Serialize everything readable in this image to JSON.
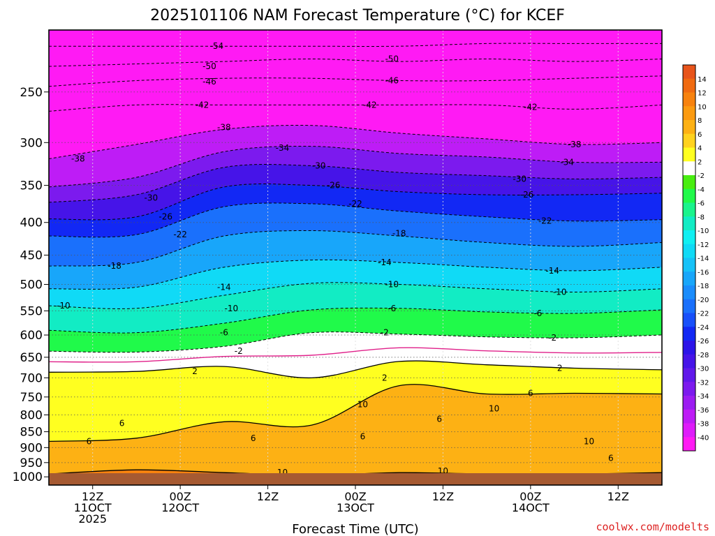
{
  "chart_data": {
    "type": "heatmap",
    "title": "2025101106 NAM Forecast Temperature (°C) for KCEF",
    "xlabel": "Forecast Time (UTC)",
    "ylabel": "",
    "x_ticks": [
      {
        "hour": 6,
        "lines": [
          "12Z",
          "11OCT",
          "2025"
        ]
      },
      {
        "hour": 18,
        "lines": [
          "00Z",
          "12OCT"
        ]
      },
      {
        "hour": 30,
        "lines": [
          "12Z"
        ]
      },
      {
        "hour": 42,
        "lines": [
          "00Z",
          "13OCT"
        ]
      },
      {
        "hour": 54,
        "lines": [
          "12Z"
        ]
      },
      {
        "hour": 66,
        "lines": [
          "00Z",
          "14OCT"
        ]
      },
      {
        "hour": 78,
        "lines": [
          "12Z"
        ]
      }
    ],
    "xlim_hours": [
      0,
      84
    ],
    "y_scale": "log",
    "ylim_hPa": [
      1030,
      200
    ],
    "y_ticks": [
      250,
      300,
      350,
      400,
      450,
      500,
      550,
      600,
      650,
      700,
      750,
      800,
      850,
      900,
      950,
      1000
    ],
    "grid": true,
    "colorbar": {
      "position": "right",
      "labels": [
        "14",
        "12",
        "10",
        "8",
        "6",
        "4",
        "2",
        "-2",
        "-4",
        "-6",
        "-8",
        "-10",
        "-12",
        "-14",
        "-16",
        "-18",
        "-20",
        "-22",
        "-24",
        "-26",
        "-28",
        "-30",
        "-32",
        "-34",
        "-36",
        "-38",
        "-40"
      ],
      "bins": [
        {
          "from": 14,
          "to": 16,
          "color": "#e8541a"
        },
        {
          "from": 12,
          "to": 14,
          "color": "#f06a10"
        },
        {
          "from": 10,
          "to": 12,
          "color": "#f7820e"
        },
        {
          "from": 8,
          "to": 10,
          "color": "#fb9a10"
        },
        {
          "from": 6,
          "to": 8,
          "color": "#fdb114"
        },
        {
          "from": 4,
          "to": 6,
          "color": "#ffd21e"
        },
        {
          "from": 2,
          "to": 4,
          "color": "#ffff20"
        },
        {
          "from": -2,
          "to": 2,
          "color": "#ffffff"
        },
        {
          "from": -4,
          "to": -2,
          "color": "#48ee10"
        },
        {
          "from": -6,
          "to": -4,
          "color": "#20fa4a"
        },
        {
          "from": -8,
          "to": -6,
          "color": "#1af48c"
        },
        {
          "from": -10,
          "to": -8,
          "color": "#12ecc4"
        },
        {
          "from": -12,
          "to": -10,
          "color": "#10f0f2"
        },
        {
          "from": -14,
          "to": -12,
          "color": "#10daf6"
        },
        {
          "from": -16,
          "to": -14,
          "color": "#16c2f8"
        },
        {
          "from": -18,
          "to": -16,
          "color": "#18a6fa"
        },
        {
          "from": -20,
          "to": -18,
          "color": "#1a8cfc"
        },
        {
          "from": -22,
          "to": -20,
          "color": "#1a70fc"
        },
        {
          "from": -24,
          "to": -22,
          "color": "#1850fa"
        },
        {
          "from": -26,
          "to": -24,
          "color": "#1228f4"
        },
        {
          "from": -28,
          "to": -26,
          "color": "#2c14e8"
        },
        {
          "from": -30,
          "to": -28,
          "color": "#4614e8"
        },
        {
          "from": -32,
          "to": -30,
          "color": "#6018ea"
        },
        {
          "from": -34,
          "to": -32,
          "color": "#7c1aee"
        },
        {
          "from": -36,
          "to": -34,
          "color": "#9c1cf2"
        },
        {
          "from": -38,
          "to": -36,
          "color": "#be1cf6"
        },
        {
          "from": -40,
          "to": -38,
          "color": "#de1cfa"
        },
        {
          "from": -60,
          "to": -40,
          "color": "#ff1af4"
        }
      ]
    },
    "surface_color": "#a65a32",
    "isotherms": [
      {
        "temp": -54,
        "pressure_hPa": [
          212,
          212,
          212,
          212,
          212,
          210,
          210,
          210
        ]
      },
      {
        "temp": -50,
        "pressure_hPa": [
          228,
          226,
          224,
          222,
          224,
          222,
          224,
          222
        ]
      },
      {
        "temp": -46,
        "pressure_hPa": [
          245,
          240,
          238,
          238,
          240,
          240,
          238,
          236
        ]
      },
      {
        "temp": -42,
        "pressure_hPa": [
          268,
          262,
          262,
          262,
          262,
          262,
          266,
          262
        ]
      },
      {
        "temp": -38,
        "pressure_hPa": [
          318,
          302,
          286,
          282,
          290,
          296,
          302,
          300
        ]
      },
      {
        "temp": -34,
        "pressure_hPa": [
          352,
          340,
          310,
          304,
          312,
          316,
          322,
          322
        ]
      },
      {
        "temp": -30,
        "pressure_hPa": [
          372,
          362,
          328,
          326,
          334,
          338,
          342,
          340
        ]
      },
      {
        "temp": -26,
        "pressure_hPa": [
          395,
          392,
          352,
          350,
          358,
          362,
          362,
          360
        ]
      },
      {
        "temp": -22,
        "pressure_hPa": [
          420,
          418,
          378,
          374,
          384,
          392,
          398,
          396
        ]
      },
      {
        "temp": -18,
        "pressure_hPa": [
          468,
          462,
          420,
          412,
          420,
          430,
          436,
          430
        ]
      },
      {
        "temp": -14,
        "pressure_hPa": [
          508,
          505,
          470,
          458,
          462,
          470,
          476,
          470
        ]
      },
      {
        "temp": -10,
        "pressure_hPa": [
          540,
          545,
          520,
          498,
          500,
          508,
          514,
          508
        ]
      },
      {
        "temp": -6,
        "pressure_hPa": [
          590,
          595,
          575,
          548,
          545,
          552,
          555,
          548
        ]
      },
      {
        "temp": -2,
        "pressure_hPa": [
          636,
          638,
          625,
          595,
          598,
          604,
          606,
          600
        ]
      },
      {
        "temp": 2,
        "pressure_hPa": [
          686,
          684,
          672,
          700,
          660,
          668,
          676,
          680
        ]
      },
      {
        "temp": 6,
        "pressure_hPa": [
          880,
          870,
          820,
          830,
          720,
          742,
          740,
          742
        ]
      },
      {
        "temp": 10,
        "pressure_hPa": [
          990,
          975,
          985,
          995,
          985,
          990,
          990,
          985
        ]
      }
    ],
    "isotherm_times_hours": [
      0,
      12,
      24,
      36,
      48,
      60,
      72,
      84
    ],
    "contour_labels": [
      {
        "text": "-54",
        "hour": 23,
        "pressure_hPa": 212
      },
      {
        "text": "-50",
        "hour": 22,
        "pressure_hPa": 228
      },
      {
        "text": "-50",
        "hour": 47,
        "pressure_hPa": 222
      },
      {
        "text": "-46",
        "hour": 22,
        "pressure_hPa": 241
      },
      {
        "text": "-46",
        "hour": 47,
        "pressure_hPa": 240
      },
      {
        "text": "-42",
        "hour": 21,
        "pressure_hPa": 262
      },
      {
        "text": "-42",
        "hour": 44,
        "pressure_hPa": 262
      },
      {
        "text": "-42",
        "hour": 66,
        "pressure_hPa": 264
      },
      {
        "text": "-38",
        "hour": 4,
        "pressure_hPa": 318
      },
      {
        "text": "-38",
        "hour": 24,
        "pressure_hPa": 284
      },
      {
        "text": "-38",
        "hour": 72,
        "pressure_hPa": 302
      },
      {
        "text": "-34",
        "hour": 32,
        "pressure_hPa": 306
      },
      {
        "text": "-34",
        "hour": 71,
        "pressure_hPa": 322
      },
      {
        "text": "-30",
        "hour": 14,
        "pressure_hPa": 366
      },
      {
        "text": "-30",
        "hour": 37,
        "pressure_hPa": 326
      },
      {
        "text": "-30",
        "hour": 64.5,
        "pressure_hPa": 342
      },
      {
        "text": "-26",
        "hour": 16,
        "pressure_hPa": 392
      },
      {
        "text": "-26",
        "hour": 39,
        "pressure_hPa": 350
      },
      {
        "text": "-26",
        "hour": 65.5,
        "pressure_hPa": 362
      },
      {
        "text": "-22",
        "hour": 18,
        "pressure_hPa": 418
      },
      {
        "text": "-22",
        "hour": 42,
        "pressure_hPa": 374
      },
      {
        "text": "-22",
        "hour": 68,
        "pressure_hPa": 398
      },
      {
        "text": "-18",
        "hour": 9,
        "pressure_hPa": 468
      },
      {
        "text": "-18",
        "hour": 48,
        "pressure_hPa": 416
      },
      {
        "text": "-14",
        "hour": 24,
        "pressure_hPa": 505
      },
      {
        "text": "-14",
        "hour": 46,
        "pressure_hPa": 462
      },
      {
        "text": "-14",
        "hour": 69,
        "pressure_hPa": 476
      },
      {
        "text": "-10",
        "hour": 2,
        "pressure_hPa": 540
      },
      {
        "text": "-10",
        "hour": 25,
        "pressure_hPa": 545
      },
      {
        "text": "-10",
        "hour": 47,
        "pressure_hPa": 500
      },
      {
        "text": "-10",
        "hour": 70,
        "pressure_hPa": 514
      },
      {
        "text": "-6",
        "hour": 24,
        "pressure_hPa": 595
      },
      {
        "text": "-6",
        "hour": 47,
        "pressure_hPa": 545
      },
      {
        "text": "-6",
        "hour": 67,
        "pressure_hPa": 555
      },
      {
        "text": "-2",
        "hour": 26,
        "pressure_hPa": 636
      },
      {
        "text": "-2",
        "hour": 46,
        "pressure_hPa": 595
      },
      {
        "text": "-2",
        "hour": 69,
        "pressure_hPa": 606
      },
      {
        "text": "2",
        "hour": 20,
        "pressure_hPa": 684
      },
      {
        "text": "2",
        "hour": 46,
        "pressure_hPa": 700
      },
      {
        "text": "2",
        "hour": 70,
        "pressure_hPa": 676
      },
      {
        "text": "6",
        "hour": 5.5,
        "pressure_hPa": 880
      },
      {
        "text": "6",
        "hour": 10,
        "pressure_hPa": 825
      },
      {
        "text": "6",
        "hour": 28,
        "pressure_hPa": 870
      },
      {
        "text": "6",
        "hour": 43,
        "pressure_hPa": 865
      },
      {
        "text": "6",
        "hour": 53.5,
        "pressure_hPa": 812
      },
      {
        "text": "6",
        "hour": 66,
        "pressure_hPa": 740
      },
      {
        "text": "6",
        "hour": 77,
        "pressure_hPa": 935
      },
      {
        "text": "10",
        "hour": 32,
        "pressure_hPa": 985
      },
      {
        "text": "10",
        "hour": 43,
        "pressure_hPa": 770
      },
      {
        "text": "10",
        "hour": 54,
        "pressure_hPa": 980
      },
      {
        "text": "10",
        "hour": 61,
        "pressure_hPa": 782
      },
      {
        "text": "10",
        "hour": 74,
        "pressure_hPa": 880
      }
    ]
  },
  "footer": {
    "credit": "coolwx.com/modelts"
  }
}
